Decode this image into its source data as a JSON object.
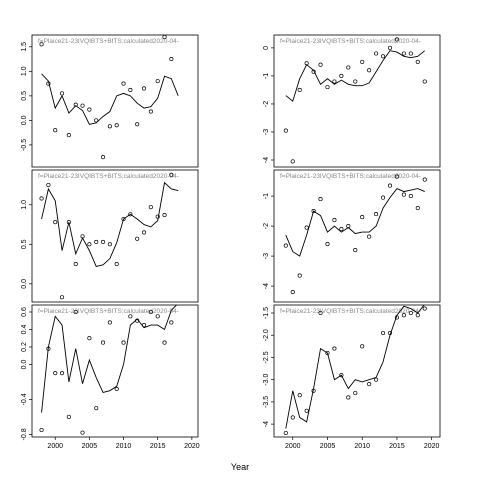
{
  "x_label": "Year",
  "chart_data": [
    {
      "type": "line",
      "title": "f=Plaice21-23IVQIBTS+BITS;calculated2020-04-",
      "x": [
        1998,
        1999,
        2000,
        2001,
        2002,
        2003,
        2004,
        2005,
        2006,
        2007,
        2008,
        2009,
        2010,
        2011,
        2012,
        2013,
        2014,
        2015,
        2016,
        2017,
        2018
      ],
      "series": [
        {
          "style": "points",
          "values": [
            1.55,
            0.75,
            -0.2,
            0.55,
            -0.3,
            0.32,
            0.3,
            0.22,
            0.0,
            -0.75,
            -0.12,
            -0.1,
            0.75,
            0.62,
            -0.08,
            0.65,
            0.18,
            0.8,
            1.7,
            1.25,
            null
          ]
        },
        {
          "style": "line",
          "values": [
            0.95,
            0.8,
            0.25,
            0.5,
            0.15,
            0.3,
            0.2,
            -0.08,
            -0.05,
            0.08,
            0.18,
            0.5,
            0.55,
            0.5,
            0.35,
            0.25,
            0.28,
            0.45,
            0.9,
            0.85,
            0.5
          ]
        }
      ],
      "xlim": [
        1996.6,
        2020.9
      ],
      "ylim": [
        -0.95,
        1.74
      ],
      "yticks": [
        -0.5,
        {
          "value": 0,
          "label": "0.0"
        },
        0.5,
        {
          "value": 1,
          "label": "1.0"
        },
        1.5
      ]
    },
    {
      "type": "line",
      "title": "f=Plaice21-23IVQIBTS+BITS;calculated2020-04-",
      "x": [
        1998,
        1999,
        2000,
        2001,
        2002,
        2003,
        2004,
        2005,
        2006,
        2007,
        2008,
        2009,
        2010,
        2011,
        2012,
        2013,
        2014,
        2015,
        2016,
        2017,
        2018
      ],
      "series": [
        {
          "style": "points",
          "values": [
            1.08,
            1.25,
            0.78,
            -0.17,
            0.78,
            0.25,
            0.6,
            0.5,
            0.53,
            0.53,
            0.5,
            0.25,
            0.82,
            0.88,
            0.57,
            0.65,
            0.97,
            0.85,
            0.87,
            1.38,
            null
          ]
        },
        {
          "style": "line",
          "values": [
            0.82,
            1.2,
            1.05,
            0.42,
            0.78,
            0.38,
            0.58,
            0.42,
            0.22,
            0.24,
            0.32,
            0.52,
            0.82,
            0.88,
            0.82,
            0.75,
            0.72,
            0.8,
            1.28,
            1.2,
            1.18
          ]
        }
      ],
      "xlim": [
        1996.6,
        2020.9
      ],
      "ylim": [
        -0.23,
        1.44
      ],
      "yticks": [
        {
          "value": 0,
          "label": "0.0"
        },
        0.5,
        {
          "value": 1,
          "label": "1.0"
        }
      ]
    },
    {
      "type": "line",
      "title": "f=Plaice21-23IVQIBTS+BITS;calculated2020-04-",
      "x": [
        1998,
        1999,
        2000,
        2001,
        2002,
        2003,
        2004,
        2005,
        2006,
        2007,
        2008,
        2009,
        2010,
        2011,
        2012,
        2013,
        2014,
        2015,
        2016,
        2017,
        2018
      ],
      "series": [
        {
          "style": "points",
          "values": [
            -0.75,
            0.18,
            -0.1,
            -0.1,
            -0.6,
            0.6,
            -0.78,
            0.3,
            -0.5,
            0.25,
            0.48,
            -0.28,
            0.25,
            0.55,
            0.5,
            0.45,
            0.6,
            0.55,
            0.25,
            0.48,
            0.7
          ]
        },
        {
          "style": "line",
          "values": [
            -0.55,
            0.2,
            0.55,
            0.45,
            -0.2,
            0.18,
            -0.22,
            0.05,
            -0.15,
            -0.32,
            -0.3,
            -0.25,
            0.0,
            0.45,
            0.52,
            0.42,
            0.45,
            0.45,
            0.4,
            0.62,
            0.7
          ]
        }
      ],
      "xlim": [
        1996.6,
        2020.9
      ],
      "ylim": [
        -0.83,
        0.68
      ],
      "yticks": [
        -0.8,
        -0.4,
        {
          "value": 0,
          "label": "0.0"
        },
        0.2,
        0.4,
        0.6
      ],
      "xticks": [
        2000,
        2005,
        2010,
        2015,
        2020
      ]
    },
    {
      "type": "line",
      "title": "f=Plaice21-23IVQIBTS+BITS;calculated2020-04-",
      "x": [
        1999,
        2000,
        2001,
        2002,
        2003,
        2004,
        2005,
        2006,
        2007,
        2008,
        2009,
        2010,
        2011,
        2012,
        2013,
        2014,
        2015,
        2016,
        2017,
        2018,
        2019
      ],
      "series": [
        {
          "style": "points",
          "values": [
            -2.95,
            -4.05,
            -1.5,
            -0.55,
            -0.85,
            -0.6,
            -1.4,
            -1.2,
            -1.0,
            -0.7,
            -1.2,
            -0.5,
            -0.8,
            -0.2,
            -0.3,
            0.0,
            0.3,
            -0.2,
            -0.2,
            -0.5,
            -1.2
          ]
        },
        {
          "style": "line",
          "values": [
            -1.7,
            -1.9,
            -1.1,
            -0.6,
            -0.8,
            -1.3,
            -1.1,
            -1.3,
            -1.15,
            -1.3,
            -1.35,
            -1.35,
            -1.25,
            -0.85,
            -0.45,
            -0.1,
            -0.15,
            -0.3,
            -0.35,
            -0.3,
            -0.1
          ]
        }
      ],
      "xlim": [
        1997.3,
        2021.2
      ],
      "ylim": [
        -4.25,
        0.46
      ],
      "yticks": [
        -4,
        -3,
        -2,
        -1,
        0
      ]
    },
    {
      "type": "line",
      "title": "f=Plaice21-23IVQIBTS+BITS;calculated2020-04-",
      "x": [
        1999,
        2000,
        2001,
        2002,
        2003,
        2004,
        2005,
        2006,
        2007,
        2008,
        2009,
        2010,
        2011,
        2012,
        2013,
        2014,
        2015,
        2016,
        2017,
        2018,
        2019
      ],
      "series": [
        {
          "style": "points",
          "values": [
            -2.65,
            -4.2,
            -3.65,
            -2.05,
            -1.5,
            -1.1,
            -2.6,
            -1.8,
            -2.1,
            -2.0,
            -2.8,
            -1.7,
            -2.35,
            -1.6,
            -1.05,
            -0.65,
            -0.35,
            -0.95,
            -1.0,
            -1.4,
            -0.45
          ]
        },
        {
          "style": "line",
          "values": [
            -2.3,
            -2.85,
            -3.0,
            -2.3,
            -1.5,
            -1.65,
            -2.2,
            -2.0,
            -2.2,
            -2.05,
            -2.25,
            -2.2,
            -2.2,
            -2.0,
            -1.4,
            -1.05,
            -0.75,
            -0.85,
            -0.8,
            -0.75,
            -0.85
          ]
        }
      ],
      "xlim": [
        1997.3,
        2021.2
      ],
      "ylim": [
        -4.53,
        -0.13
      ],
      "yticks": [
        -4,
        -3,
        -2,
        -1
      ]
    },
    {
      "type": "line",
      "title": "f=Plaice21-23IVQIBTS+BITS;calculated2020-04-",
      "x": [
        1999,
        2000,
        2001,
        2002,
        2003,
        2004,
        2005,
        2006,
        2007,
        2008,
        2009,
        2010,
        2011,
        2012,
        2013,
        2014,
        2015,
        2016,
        2017,
        2018,
        2019
      ],
      "series": [
        {
          "style": "points",
          "values": [
            -4.2,
            -3.85,
            -3.35,
            -3.7,
            -3.25,
            -1.5,
            -2.4,
            -2.3,
            -2.9,
            -3.4,
            -3.3,
            -2.25,
            -3.1,
            -3.0,
            -1.95,
            -1.95,
            -1.6,
            -1.55,
            -1.5,
            -1.55,
            -1.4
          ]
        },
        {
          "style": "line",
          "values": [
            -4.1,
            -3.25,
            -3.85,
            -3.95,
            -3.2,
            -2.3,
            -2.4,
            -3.0,
            -2.9,
            -3.2,
            -3.0,
            -3.05,
            -3.0,
            -2.95,
            -2.6,
            -2.0,
            -1.55,
            -1.35,
            -1.4,
            -1.5,
            -1.3
          ]
        }
      ],
      "xlim": [
        1997.3,
        2021.2
      ],
      "ylim": [
        -4.29,
        -1.32
      ],
      "yticks": [
        -4,
        -3.5,
        {
          "value": -3,
          "label": "-3.0"
        },
        -2.5,
        {
          "value": -2,
          "label": "-2.0"
        },
        -1.5
      ],
      "xticks": [
        2000,
        2005,
        2010,
        2015,
        2020
      ]
    }
  ]
}
